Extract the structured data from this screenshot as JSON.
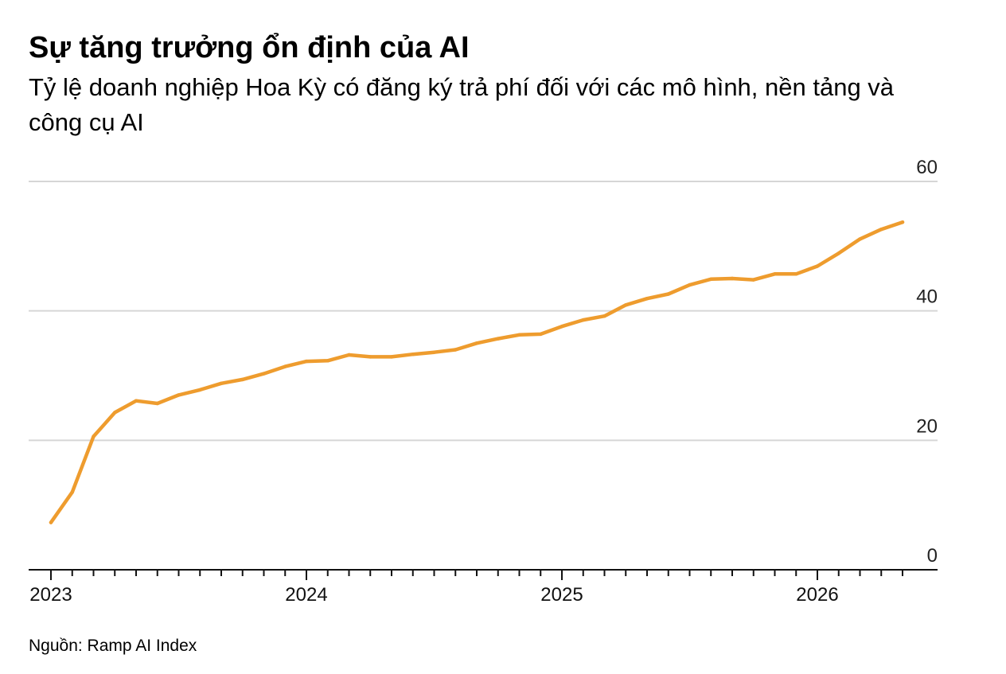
{
  "header": {
    "title": "Sự tăng trưởng ổn định của AI",
    "subtitle": "Tỷ lệ doanh nghiệp Hoa Kỳ có đăng ký trả phí đối với các mô hình, nền tảng và công cụ AI"
  },
  "footer": {
    "source": "Nguồn: Ramp AI Index"
  },
  "chart_data": {
    "type": "line",
    "title": "Sự tăng trưởng ổn định của AI",
    "subtitle": "Tỷ lệ doanh nghiệp Hoa Kỳ có đăng ký trả phí đối với các mô hình, nền tảng và công cụ AI",
    "xlabel": "",
    "ylabel": "",
    "ylim": [
      0,
      60
    ],
    "yticks": [
      0,
      20,
      40,
      60
    ],
    "y_axis_position": "right",
    "grid": true,
    "legend": "none",
    "color": "#ee9c2e",
    "x_tick_labels": [
      "2023",
      "2024",
      "2025",
      "2026"
    ],
    "x": [
      "2023-01",
      "2023-02",
      "2023-03",
      "2023-04",
      "2023-05",
      "2023-06",
      "2023-07",
      "2023-08",
      "2023-09",
      "2023-10",
      "2023-11",
      "2023-12",
      "2024-01",
      "2024-02",
      "2024-03",
      "2024-04",
      "2024-05",
      "2024-06",
      "2024-07",
      "2024-08",
      "2024-09",
      "2024-10",
      "2024-11",
      "2024-12",
      "2025-01",
      "2025-02",
      "2025-03",
      "2025-04",
      "2025-05",
      "2025-06",
      "2025-07",
      "2025-08",
      "2025-09",
      "2025-10",
      "2025-11",
      "2025-12",
      "2026-01",
      "2026-02",
      "2026-03",
      "2026-04",
      "2026-05"
    ],
    "series": [
      {
        "values": [
          7.3,
          12,
          20.6,
          24.3,
          26.1,
          25.7,
          27,
          27.8,
          28.8,
          29.4,
          30.3,
          31.4,
          32.2,
          32.3,
          33.2,
          32.9,
          32.9,
          33.3,
          33.6,
          34,
          35,
          35.7,
          36.3,
          36.4,
          37.6,
          38.6,
          39.2,
          40.9,
          41.9,
          42.6,
          44,
          44.9,
          45,
          44.8,
          45.7,
          45.7,
          46.9,
          48.9,
          51.1,
          52.6,
          53.7
        ]
      }
    ]
  }
}
